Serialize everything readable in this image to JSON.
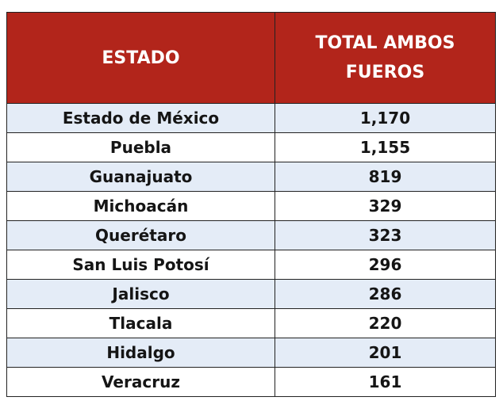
{
  "table": {
    "headers": {
      "state": "ESTADO",
      "total_line1": "TOTAL AMBOS",
      "total_line2": "FUEROS"
    },
    "header_color": "#b2251b",
    "stripe_color": "#e4ecf7",
    "rows": [
      {
        "state": "Estado de México",
        "total": "1,170"
      },
      {
        "state": "Puebla",
        "total": "1,155"
      },
      {
        "state": "Guanajuato",
        "total": "819"
      },
      {
        "state": "Michoacán",
        "total": "329"
      },
      {
        "state": "Querétaro",
        "total": "323"
      },
      {
        "state": "San Luis Potosí",
        "total": "296"
      },
      {
        "state": "Jalisco",
        "total": "286"
      },
      {
        "state": "Tlacala",
        "total": "220"
      },
      {
        "state": "Hidalgo",
        "total": "201"
      },
      {
        "state": "Veracruz",
        "total": "161"
      }
    ]
  }
}
